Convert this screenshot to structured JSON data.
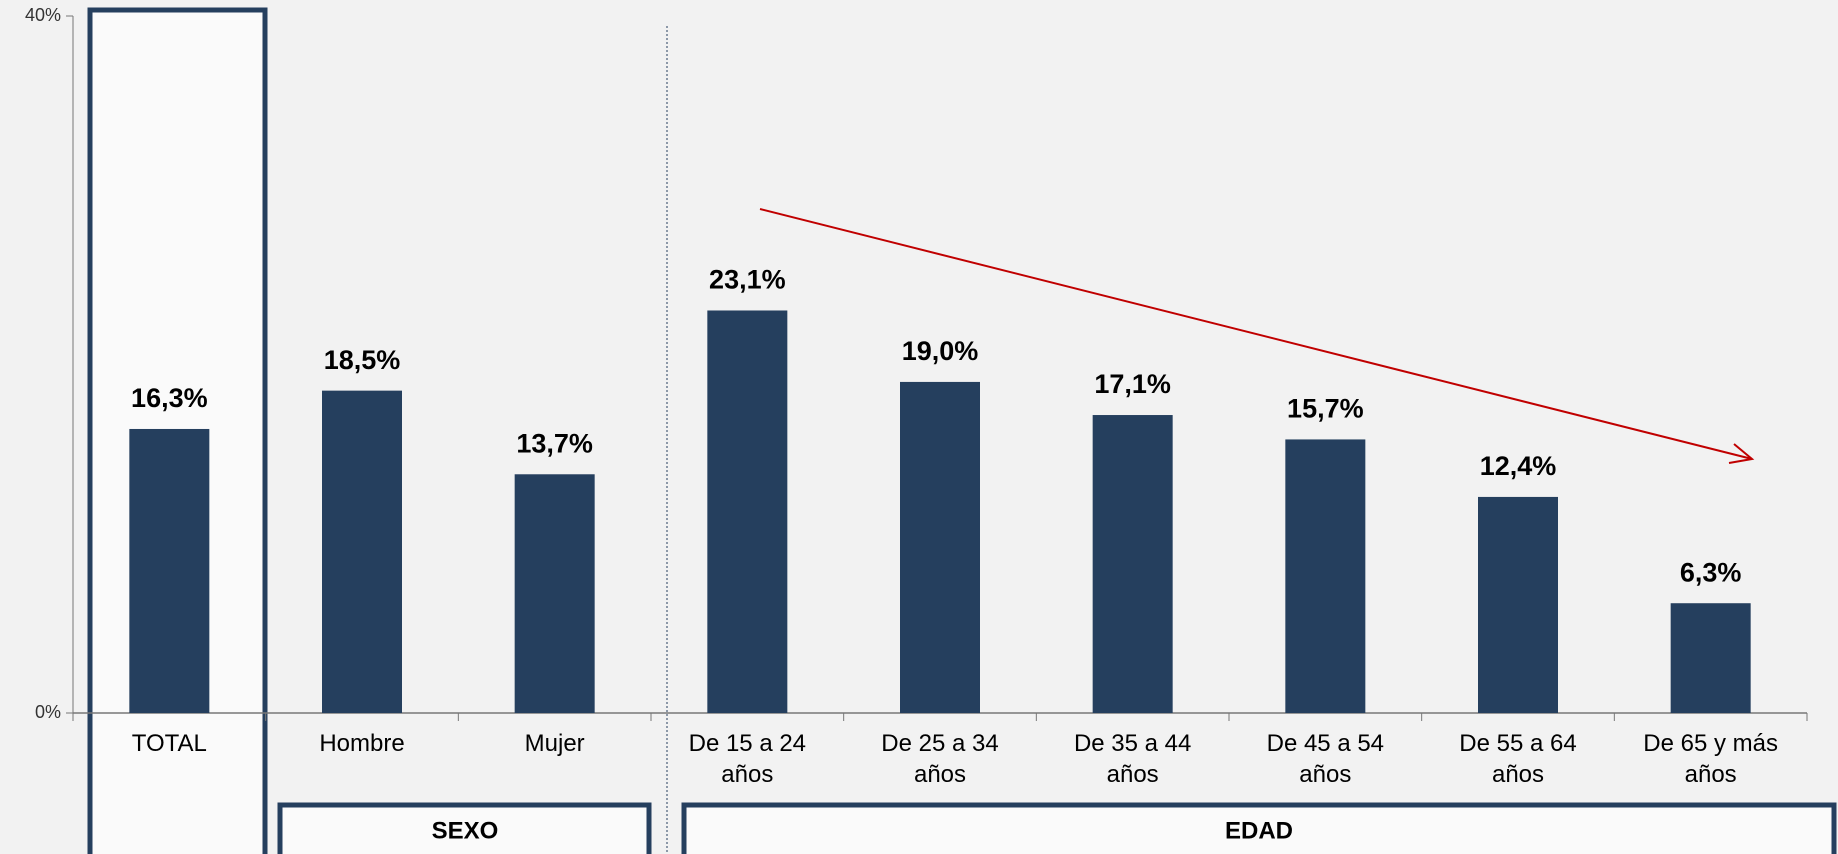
{
  "chart_data": {
    "type": "bar",
    "categories": [
      "TOTAL",
      "Hombre",
      "Mujer",
      "De 15 a 24 años",
      "De 25 a 34 años",
      "De 35 a 44 años",
      "De 45 a 54 años",
      "De 55 a 64 años",
      "De 65 y más años"
    ],
    "values": [
      16.3,
      18.5,
      13.7,
      23.1,
      19.0,
      17.1,
      15.7,
      12.4,
      6.3
    ],
    "value_labels": [
      "16,3%",
      "18,5%",
      "13,7%",
      "23,1%",
      "19,0%",
      "17,1%",
      "15,7%",
      "12,4%",
      "6,3%"
    ],
    "color": "#253f5e",
    "ylim": [
      0,
      40
    ],
    "yticks": [
      {
        "value": 0,
        "label": "0%"
      },
      {
        "value": 40,
        "label": "40%"
      }
    ],
    "annotations": [
      "SEXO",
      "EDAD"
    ]
  }
}
